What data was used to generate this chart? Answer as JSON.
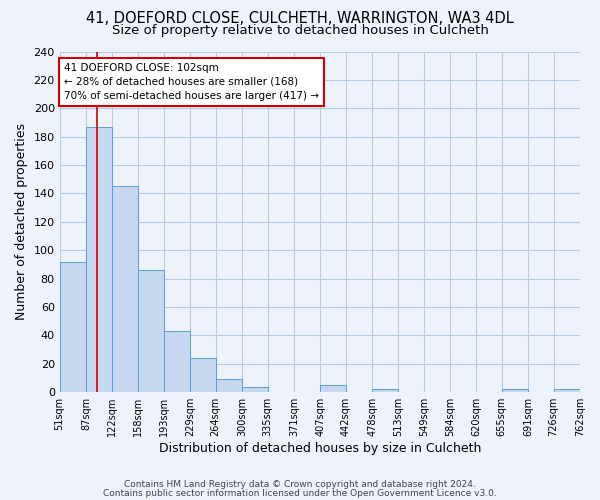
{
  "title1": "41, DOEFORD CLOSE, CULCHETH, WARRINGTON, WA3 4DL",
  "title2": "Size of property relative to detached houses in Culcheth",
  "xlabel": "Distribution of detached houses by size in Culcheth",
  "ylabel": "Number of detached properties",
  "bin_edges": [
    51,
    87,
    122,
    158,
    193,
    229,
    264,
    300,
    335,
    371,
    407,
    442,
    478,
    513,
    549,
    584,
    620,
    655,
    691,
    726,
    762
  ],
  "bin_labels": [
    "51sqm",
    "87sqm",
    "122sqm",
    "158sqm",
    "193sqm",
    "229sqm",
    "264sqm",
    "300sqm",
    "335sqm",
    "371sqm",
    "407sqm",
    "442sqm",
    "478sqm",
    "513sqm",
    "549sqm",
    "584sqm",
    "620sqm",
    "655sqm",
    "691sqm",
    "726sqm",
    "762sqm"
  ],
  "counts": [
    92,
    187,
    145,
    86,
    43,
    24,
    9,
    4,
    0,
    0,
    5,
    0,
    2,
    0,
    0,
    0,
    0,
    2,
    0,
    2
  ],
  "bar_color": "#c5d8f0",
  "bar_edge_color": "#5a9fd4",
  "vline_x": 102,
  "vline_color": "#cc0000",
  "annotation_title": "41 DOEFORD CLOSE: 102sqm",
  "annotation_line1": "← 28% of detached houses are smaller (168)",
  "annotation_line2": "70% of semi-detached houses are larger (417) →",
  "annotation_box_color": "#ffffff",
  "annotation_box_edge": "#cc0000",
  "ylim": [
    0,
    240
  ],
  "yticks": [
    0,
    20,
    40,
    60,
    80,
    100,
    120,
    140,
    160,
    180,
    200,
    220,
    240
  ],
  "footer1": "Contains HM Land Registry data © Crown copyright and database right 2024.",
  "footer2": "Contains public sector information licensed under the Open Government Licence v3.0.",
  "bg_color": "#eef2fb",
  "grid_color": "#b8cce4",
  "title_fontsize": 10.5,
  "subtitle_fontsize": 9.5
}
